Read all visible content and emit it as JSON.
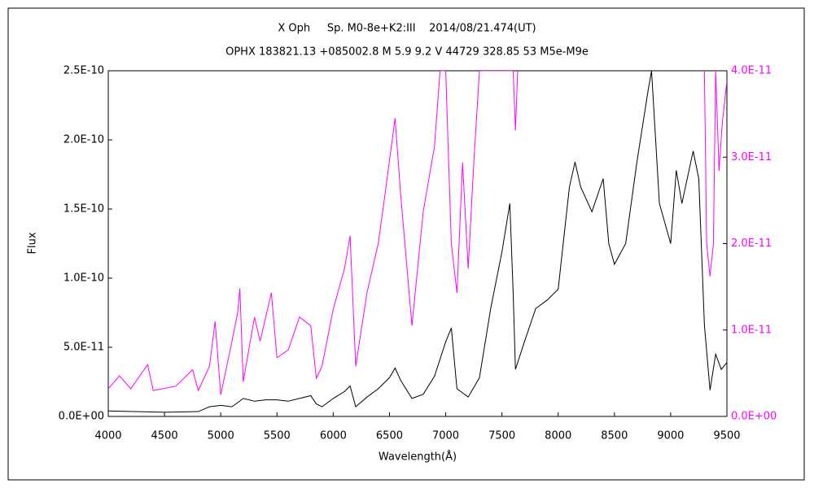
{
  "chart_data": {
    "type": "line",
    "title": "X Oph     Sp. M0-8e+K2:III    2014/08/21.474(UT)",
    "subtitle": "OPHX 183821.13 +085002.8 M 5.9 9.2 V 44729 328.85 53 M5e-M9e",
    "x_label": "Wavelength(Å)",
    "y_label": "Flux",
    "xlim": [
      4000,
      9500
    ],
    "xticks": [
      4000,
      4500,
      5000,
      5500,
      6000,
      6500,
      7000,
      7500,
      8000,
      8500,
      9000,
      9500
    ],
    "ylim": [
      0,
      2.5e-10
    ],
    "yticks": [
      {
        "value": 0,
        "label": "0.0E+00"
      },
      {
        "value": 5e-11,
        "label": "5.0E-11"
      },
      {
        "value": 1e-10,
        "label": "1.0E-10"
      },
      {
        "value": 1.5e-10,
        "label": "1.5E-10"
      },
      {
        "value": 2e-10,
        "label": "2.0E-10"
      },
      {
        "value": 2.5e-10,
        "label": "2.5E-10"
      }
    ],
    "y2lim": [
      0,
      4e-11
    ],
    "y2ticks": [
      {
        "value": 0,
        "label": "0.0E+00"
      },
      {
        "value": 1e-11,
        "label": "1.0E-11"
      },
      {
        "value": 2e-11,
        "label": "2.0E-11"
      },
      {
        "value": 3e-11,
        "label": "3.0E-11"
      },
      {
        "value": 4e-11,
        "label": "4.0E-11"
      }
    ],
    "y2color": "#ff00ff",
    "series": [
      {
        "color": "#000000",
        "x": [
          4000,
          4500,
          4800,
          4900,
          5000,
          5100,
          5200,
          5300,
          5400,
          5500,
          5600,
          5700,
          5800,
          5850,
          5900,
          6000,
          6100,
          6150,
          6200,
          6300,
          6400,
          6500,
          6550,
          6600,
          6700,
          6800,
          6900,
          7000,
          7050,
          7100,
          7200,
          7300,
          7400,
          7500,
          7570,
          7600,
          7620,
          7700,
          7800,
          7900,
          8000,
          8100,
          8150,
          8200,
          8300,
          8400,
          8450,
          8500,
          8600,
          8700,
          8800,
          8830,
          8900,
          9000,
          9050,
          9100,
          9200,
          9250,
          9300,
          9350,
          9400,
          9450,
          9500
        ],
        "values": [
          4e-12,
          3e-12,
          3.5e-12,
          7e-12,
          8e-12,
          7e-12,
          1.3e-11,
          1.1e-11,
          1.2e-11,
          1.2e-11,
          1.1e-11,
          1.3e-11,
          1.5e-11,
          9e-12,
          7e-12,
          1.3e-11,
          1.8e-11,
          2.2e-11,
          7e-12,
          1.4e-11,
          2e-11,
          2.8e-11,
          3.5e-11,
          2.6e-11,
          1.3e-11,
          1.6e-11,
          2.9e-11,
          5.4e-11,
          6.4e-11,
          2e-11,
          1.4e-11,
          2.8e-11,
          7.8e-11,
          1.19e-10,
          1.54e-10,
          8.9e-11,
          3.4e-11,
          5.4e-11,
          7.8e-11,
          8.4e-11,
          9.2e-11,
          1.66e-10,
          1.84e-10,
          1.66e-10,
          1.48e-10,
          1.72e-10,
          1.25e-10,
          1.1e-10,
          1.25e-10,
          1.84e-10,
          2.36e-10,
          2.5e-10,
          1.54e-10,
          1.25e-10,
          1.78e-10,
          1.54e-10,
          1.92e-10,
          1.72e-10,
          6.6e-11,
          1.9e-11,
          4.5e-11,
          3.4e-11,
          3.9e-11
        ]
      },
      {
        "color": "#ff00ff",
        "axis": "y2",
        "x": [
          4000,
          4100,
          4200,
          4350,
          4400,
          4600,
          4750,
          4800,
          4900,
          4950,
          5000,
          5100,
          5150,
          5170,
          5200,
          5300,
          5350,
          5450,
          5500,
          5600,
          5700,
          5800,
          5850,
          5900,
          6000,
          6100,
          6150,
          6200,
          6300,
          6400,
          6450,
          6550,
          6600,
          6700,
          6800,
          6900,
          6950,
          7000,
          7050,
          7100,
          7150,
          7200,
          7250,
          7300,
          7600,
          7620,
          7640,
          8500,
          9300,
          9320,
          9350,
          9380,
          9400,
          9430,
          9460,
          9500
        ],
        "values": [
          3.2e-12,
          4.7e-12,
          3.2e-12,
          6e-12,
          3e-12,
          3.5e-12,
          5.4e-12,
          3e-12,
          5.8e-12,
          1.1e-11,
          2.5e-12,
          8.7e-12,
          1.2e-11,
          1.48e-11,
          4e-12,
          1.15e-11,
          8.7e-12,
          1.43e-11,
          6.8e-12,
          7.7e-12,
          1.15e-11,
          1.05e-11,
          4.4e-12,
          5.8e-12,
          1.24e-11,
          1.71e-11,
          2.09e-11,
          5.8e-12,
          1.43e-11,
          2e-11,
          2.47e-11,
          3.45e-11,
          2.56e-11,
          1.05e-11,
          2.37e-11,
          3.12e-11,
          4e-11,
          4e-11,
          2e-11,
          1.43e-11,
          2.94e-11,
          1.71e-11,
          2.94e-11,
          4e-11,
          4e-11,
          3.31e-11,
          4e-11,
          null,
          4e-11,
          2e-11,
          1.62e-11,
          2e-11,
          4e-11,
          2.84e-11,
          3.41e-11,
          3.88e-11
        ]
      }
    ]
  }
}
